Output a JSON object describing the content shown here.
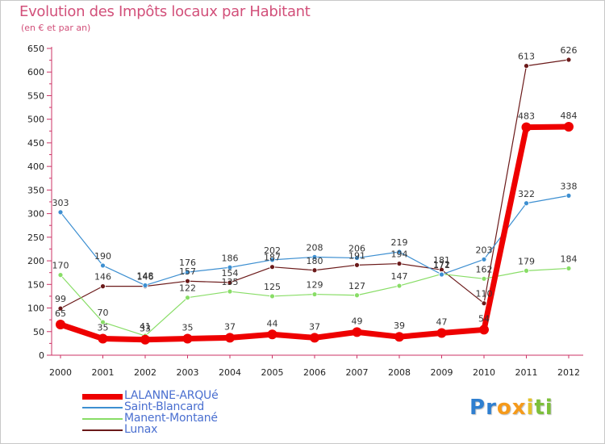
{
  "header": {
    "title": "Evolution des Impôts locaux par Habitant",
    "subtitle": "(en € et par an)"
  },
  "chart_data": {
    "type": "line",
    "title": "Evolution des Impôts locaux par Habitant",
    "subtitle": "(en € et par an)",
    "xlabel": "",
    "ylabel": "",
    "categories": [
      "2000",
      "2001",
      "2002",
      "2003",
      "2004",
      "2005",
      "2006",
      "2007",
      "2008",
      "2009",
      "2010",
      "2011",
      "2012"
    ],
    "ylim": [
      0,
      650
    ],
    "yticks": [
      0,
      50,
      100,
      150,
      200,
      250,
      300,
      350,
      400,
      450,
      500,
      550,
      600,
      650
    ],
    "grid": false,
    "legend_position": "bottom-left",
    "series": [
      {
        "name": "LALANNE-ARQUé",
        "color": "#ee0000",
        "values": [
          65,
          35,
          33,
          35,
          37,
          44,
          37,
          49,
          39,
          47,
          54,
          483,
          484
        ]
      },
      {
        "name": "Saint-Blancard",
        "color": "#3d8fd1",
        "values": [
          303,
          190,
          148,
          176,
          186,
          202,
          208,
          206,
          219,
          171,
          203,
          322,
          338
        ]
      },
      {
        "name": "Manent-Montané",
        "color": "#88dd66",
        "values": [
          170,
          70,
          41,
          122,
          135,
          125,
          129,
          127,
          147,
          172,
          162,
          179,
          184
        ]
      },
      {
        "name": "Lunax",
        "color": "#6b1a1a",
        "values": [
          99,
          146,
          146,
          157,
          154,
          187,
          180,
          191,
          194,
          181,
          110,
          613,
          626
        ]
      }
    ]
  },
  "logo": {
    "letters": [
      "P",
      "r",
      "o",
      "x",
      "i",
      "t",
      "i"
    ],
    "colors": [
      "#2f7fd0",
      "#2f7fd0",
      "#f59a1b",
      "#f59a1b",
      "#e3c12a",
      "#7cbf3a",
      "#7cbf3a"
    ]
  }
}
